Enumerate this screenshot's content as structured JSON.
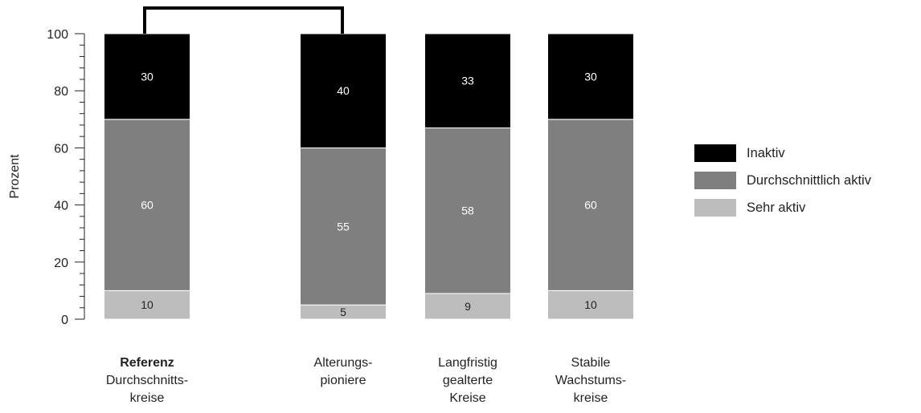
{
  "chart_data": {
    "type": "bar",
    "stacked": true,
    "ylabel": "Prozent",
    "ylim": [
      0,
      100
    ],
    "yticks": [
      0,
      20,
      40,
      60,
      80,
      100
    ],
    "grid": false,
    "legend_position": "right",
    "categories": [
      {
        "bold": "Referenz",
        "lines": [
          "Durchschnitts-",
          "kreise"
        ]
      },
      {
        "bold": "",
        "lines": [
          "Alterungs-",
          "pioniere"
        ]
      },
      {
        "bold": "",
        "lines": [
          "Langfristig",
          "gealterte",
          "Kreise"
        ]
      },
      {
        "bold": "",
        "lines": [
          "Stabile",
          "Wachstums-",
          "kreise"
        ]
      }
    ],
    "series": [
      {
        "name": "Sehr aktiv",
        "color": "#bdbdbd",
        "label_color": "#222222",
        "values": [
          10,
          5,
          9,
          10
        ]
      },
      {
        "name": "Durchschnittlich aktiv",
        "color": "#7f7f7f",
        "label_color": "#ffffff",
        "values": [
          60,
          55,
          58,
          60
        ]
      },
      {
        "name": "Inaktiv",
        "color": "#000000",
        "label_color": "#ffffff",
        "values": [
          30,
          40,
          33,
          30
        ]
      }
    ],
    "comparison_bracket": {
      "from_category": 0,
      "to_category": 1
    }
  }
}
